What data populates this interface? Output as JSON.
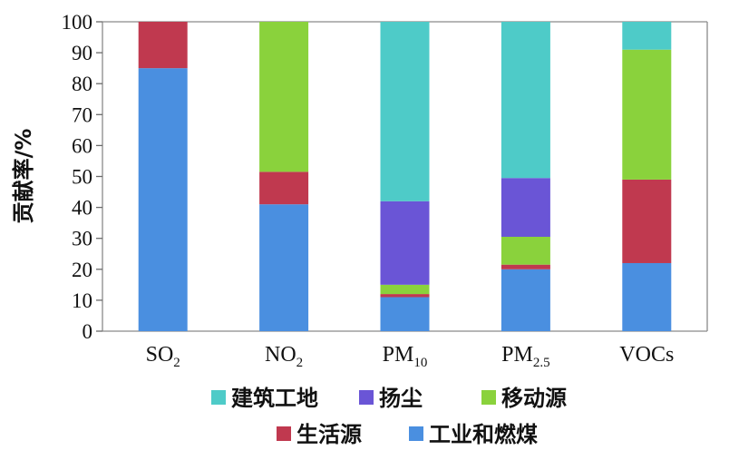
{
  "chart_data": {
    "type": "bar",
    "stacked": true,
    "ylabel": "贡献率/%",
    "xlabel": "",
    "ylim": [
      0,
      100
    ],
    "yticks": [
      0,
      10,
      20,
      30,
      40,
      50,
      60,
      70,
      80,
      90,
      100
    ],
    "grid": false,
    "legend_position": "bottom",
    "categories": [
      {
        "base": "SO",
        "sub": "2"
      },
      {
        "base": "NO",
        "sub": "2"
      },
      {
        "base": "PM",
        "sub": "10"
      },
      {
        "base": "PM",
        "sub": "2.5"
      },
      {
        "base": "VOCs",
        "sub": ""
      }
    ],
    "series": [
      {
        "name": "工业和燃煤",
        "color": "#4a8fe0",
        "values": [
          85,
          41,
          11,
          20,
          22
        ]
      },
      {
        "name": "生活源",
        "color": "#c0394f",
        "values": [
          15,
          10.5,
          1,
          1.5,
          27
        ]
      },
      {
        "name": "移动源",
        "color": "#8ad23c",
        "values": [
          0,
          48.5,
          3,
          9,
          42
        ]
      },
      {
        "name": "扬尘",
        "color": "#6a55d6",
        "values": [
          0,
          0,
          27,
          19,
          0
        ]
      },
      {
        "name": "建筑工地",
        "color": "#4ecbc8",
        "values": [
          0,
          0,
          58,
          50.5,
          9
        ]
      }
    ],
    "legend_rows": [
      [
        "建筑工地",
        "扬尘",
        "移动源"
      ],
      [
        "生活源",
        "工业和燃煤"
      ]
    ]
  }
}
